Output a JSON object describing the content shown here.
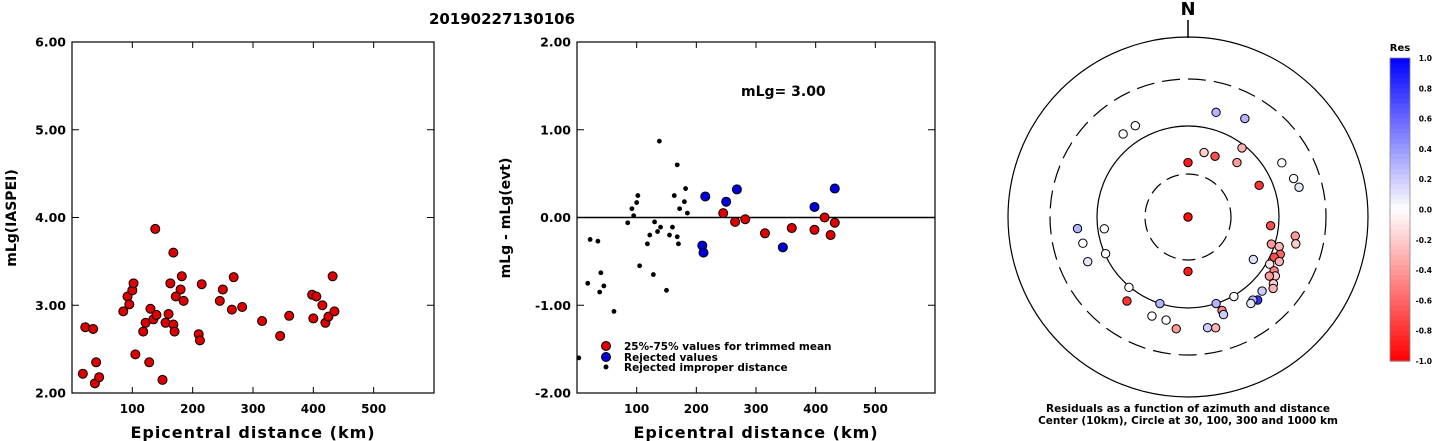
{
  "title": "20190227130106",
  "chart_data": [
    {
      "type": "scatter",
      "xlabel": "Epicentral distance (km)",
      "ylabel": "mLg(IASPEI)",
      "xlim": [
        0,
        600
      ],
      "ylim": [
        2.0,
        6.0
      ],
      "xticks": [
        "100",
        "200",
        "300",
        "400",
        "500"
      ],
      "yticks": [
        "2.00",
        "3.00",
        "4.00",
        "5.00",
        "6.00"
      ],
      "marker_color": "#dd0000",
      "points": [
        [
          18,
          2.22
        ],
        [
          22,
          2.75
        ],
        [
          35,
          2.73
        ],
        [
          38,
          2.11
        ],
        [
          40,
          2.35
        ],
        [
          45,
          2.18
        ],
        [
          85,
          2.93
        ],
        [
          92,
          3.1
        ],
        [
          95,
          3.01
        ],
        [
          100,
          3.17
        ],
        [
          102,
          3.25
        ],
        [
          105,
          2.44
        ],
        [
          118,
          2.7
        ],
        [
          122,
          2.8
        ],
        [
          128,
          2.35
        ],
        [
          130,
          2.96
        ],
        [
          135,
          2.84
        ],
        [
          138,
          3.87
        ],
        [
          140,
          2.89
        ],
        [
          150,
          2.15
        ],
        [
          155,
          2.8
        ],
        [
          160,
          2.9
        ],
        [
          163,
          3.25
        ],
        [
          168,
          3.6
        ],
        [
          168,
          2.78
        ],
        [
          170,
          2.7
        ],
        [
          172,
          3.1
        ],
        [
          180,
          3.18
        ],
        [
          182,
          3.33
        ],
        [
          185,
          3.05
        ],
        [
          210,
          2.67
        ],
        [
          212,
          2.6
        ],
        [
          215,
          3.24
        ],
        [
          245,
          3.05
        ],
        [
          250,
          3.18
        ],
        [
          265,
          2.95
        ],
        [
          268,
          3.32
        ],
        [
          282,
          2.98
        ],
        [
          315,
          2.82
        ],
        [
          345,
          2.65
        ],
        [
          360,
          2.88
        ],
        [
          398,
          3.12
        ],
        [
          400,
          2.85
        ],
        [
          405,
          3.1
        ],
        [
          415,
          3.0
        ],
        [
          420,
          2.8
        ],
        [
          425,
          2.87
        ],
        [
          432,
          3.33
        ],
        [
          435,
          2.93
        ]
      ]
    },
    {
      "type": "scatter",
      "xlabel": "Epicentral distance (km)",
      "ylabel": "mLg - mLg(evt)",
      "xlim": [
        0,
        600
      ],
      "ylim": [
        -2.0,
        2.0
      ],
      "xticks": [
        "100",
        "200",
        "300",
        "400",
        "500"
      ],
      "yticks": [
        "-2.00",
        "-1.00",
        "0.00",
        "1.00",
        "2.00"
      ],
      "reference_line": 0.0,
      "annotation": "mLg= 3.00",
      "legend": [
        {
          "label": "25%-75% values for trimmed mean",
          "color": "#dd0000"
        },
        {
          "label": "Rejected values",
          "color": "#0000dd"
        },
        {
          "label": "Rejected improper distance",
          "color": "#000000"
        }
      ],
      "series": [
        {
          "name": "25%-75% values for trimmed mean",
          "color": "#dd0000",
          "points": [
            [
              245,
              0.05
            ],
            [
              265,
              -0.05
            ],
            [
              282,
              -0.02
            ],
            [
              315,
              -0.18
            ],
            [
              360,
              -0.12
            ],
            [
              398,
              -0.14
            ],
            [
              415,
              0.0
            ],
            [
              425,
              -0.2
            ],
            [
              432,
              -0.06
            ]
          ]
        },
        {
          "name": "Rejected values",
          "color": "#0000dd",
          "points": [
            [
              210,
              -0.32
            ],
            [
              212,
              -0.4
            ],
            [
              215,
              0.24
            ],
            [
              250,
              0.18
            ],
            [
              268,
              0.32
            ],
            [
              345,
              -0.34
            ],
            [
              398,
              0.12
            ],
            [
              432,
              0.33
            ]
          ]
        },
        {
          "name": "Rejected improper distance",
          "color": "#000000",
          "points": [
            [
              3,
              -1.6
            ],
            [
              18,
              -0.75
            ],
            [
              22,
              -0.25
            ],
            [
              35,
              -0.27
            ],
            [
              38,
              -0.85
            ],
            [
              40,
              -0.63
            ],
            [
              45,
              -0.78
            ],
            [
              62,
              -1.07
            ],
            [
              85,
              -0.06
            ],
            [
              92,
              0.1
            ],
            [
              95,
              0.02
            ],
            [
              100,
              0.17
            ],
            [
              102,
              0.25
            ],
            [
              105,
              -0.55
            ],
            [
              118,
              -0.3
            ],
            [
              122,
              -0.2
            ],
            [
              128,
              -0.65
            ],
            [
              130,
              -0.05
            ],
            [
              135,
              -0.16
            ],
            [
              138,
              0.87
            ],
            [
              140,
              -0.11
            ],
            [
              150,
              -0.83
            ],
            [
              155,
              -0.2
            ],
            [
              160,
              -0.11
            ],
            [
              163,
              0.25
            ],
            [
              168,
              0.6
            ],
            [
              168,
              -0.22
            ],
            [
              170,
              -0.3
            ],
            [
              172,
              0.1
            ],
            [
              180,
              0.18
            ],
            [
              182,
              0.33
            ],
            [
              185,
              0.05
            ]
          ]
        }
      ]
    },
    {
      "type": "polar-scatter",
      "north_label": "N",
      "caption_line1": "Residuals as a function of azimuth and distance",
      "caption_line2": "Center (10km), Circle at 30, 100, 300 and 1000 km",
      "rings_km": [
        30,
        100,
        300,
        1000
      ],
      "colorbar": {
        "title": "Res",
        "ticks": [
          "1.0",
          "0.8",
          "0.6",
          "0.4",
          "0.2",
          "0.0",
          "-0.2",
          "-0.4",
          "-0.6",
          "-0.8",
          "-1.0"
        ]
      },
      "points": [
        {
          "az": 0,
          "dist": 10,
          "res": -0.95
        },
        {
          "az": 0,
          "dist": 40,
          "res": -0.9
        },
        {
          "az": 180,
          "dist": 40,
          "res": -0.9
        },
        {
          "az": 14,
          "dist": 54,
          "res": -0.2
        },
        {
          "az": 24,
          "dist": 54,
          "res": -0.7
        },
        {
          "az": 42,
          "dist": 64,
          "res": -0.4
        },
        {
          "az": 38,
          "dist": 92,
          "res": -0.3
        },
        {
          "az": 66,
          "dist": 72,
          "res": -0.8
        },
        {
          "az": 96,
          "dist": 82,
          "res": -0.7
        },
        {
          "az": 108,
          "dist": 92,
          "res": -0.4
        },
        {
          "az": 123,
          "dist": 72,
          "res": 0.12
        },
        {
          "az": 150,
          "dist": 102,
          "res": 0.0
        },
        {
          "az": 160,
          "dist": 122,
          "res": -0.5
        },
        {
          "az": 162,
          "dist": 100,
          "res": 0.3
        },
        {
          "az": 198,
          "dist": 100,
          "res": 0.3
        },
        {
          "az": 220,
          "dist": 102,
          "res": 0.0
        },
        {
          "az": 246,
          "dist": 98,
          "res": 0.0
        },
        {
          "az": 262,
          "dist": 85,
          "res": 0.0
        },
        {
          "az": 15,
          "dist": 150,
          "res": 0.3
        },
        {
          "az": 60,
          "dist": 150,
          "res": 0.0
        },
        {
          "az": 75,
          "dist": 175,
          "res": 0.1
        },
        {
          "az": 100,
          "dist": 152,
          "res": -0.4
        },
        {
          "az": 104,
          "dist": 160,
          "res": -0.2
        },
        {
          "az": 108,
          "dist": 112,
          "res": -0.3
        },
        {
          "az": 112,
          "dist": 122,
          "res": -0.6
        },
        {
          "az": 115,
          "dist": 110,
          "res": -0.7
        },
        {
          "az": 116,
          "dist": 128,
          "res": -0.3
        },
        {
          "az": 120,
          "dist": 108,
          "res": -0.1
        },
        {
          "az": 122,
          "dist": 128,
          "res": -0.5
        },
        {
          "az": 124,
          "dist": 140,
          "res": -0.2
        },
        {
          "az": 126,
          "dist": 125,
          "res": -0.4
        },
        {
          "az": 128,
          "dist": 150,
          "res": -0.2
        },
        {
          "az": 130,
          "dist": 160,
          "res": -0.3
        },
        {
          "az": 135,
          "dist": 138,
          "res": 0.2
        },
        {
          "az": 140,
          "dist": 150,
          "res": 0.8
        },
        {
          "az": 142,
          "dist": 140,
          "res": 0.3
        },
        {
          "az": 144,
          "dist": 145,
          "res": 0.1
        },
        {
          "az": 160,
          "dist": 135,
          "res": 0.2
        },
        {
          "az": 166,
          "dist": 172,
          "res": -0.3
        },
        {
          "az": 170,
          "dist": 165,
          "res": 0.2
        },
        {
          "az": 186,
          "dist": 165,
          "res": -0.4
        },
        {
          "az": 192,
          "dist": 140,
          "res": 0.0
        },
        {
          "az": 200,
          "dist": 140,
          "res": 0.0
        },
        {
          "az": 216,
          "dist": 135,
          "res": -0.8
        },
        {
          "az": 246,
          "dist": 155,
          "res": 0.1
        },
        {
          "az": 256,
          "dist": 150,
          "res": 0.0
        },
        {
          "az": 264,
          "dist": 160,
          "res": 0.3
        },
        {
          "az": 322,
          "dist": 140,
          "res": 0.0
        },
        {
          "az": 330,
          "dist": 140,
          "res": 0.0
        },
        {
          "az": 30,
          "dist": 170,
          "res": 0.3
        },
        {
          "az": 70,
          "dist": 165,
          "res": 0.0
        }
      ]
    }
  ]
}
